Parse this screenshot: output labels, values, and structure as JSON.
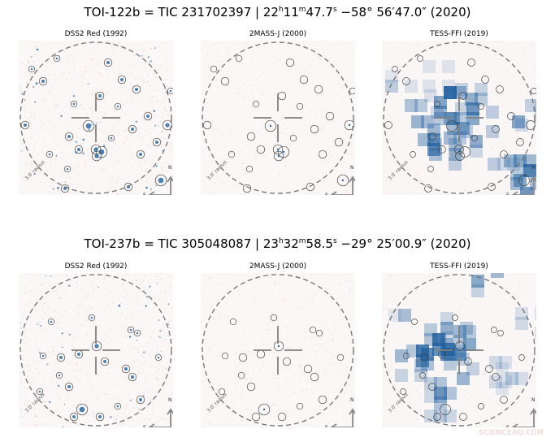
{
  "rows": [
    {
      "title_main": "TOI-122b = TIC 231702397 | 22",
      "ra_h_unit": "h",
      "ra_min": "11",
      "ra_m_unit": "m",
      "ra_sec": "47.7",
      "ra_s_unit": "s",
      "title_dec": " −58° 56′47.0″ (2020)",
      "panels": [
        {
          "label": "DSS2 Red (1992)",
          "type": "dss"
        },
        {
          "label": "2MASS-J (2000)",
          "type": "twomass"
        },
        {
          "label": "TESS-FFI (2019)",
          "type": "tess"
        }
      ]
    },
    {
      "title_main": "TOI-237b = TIC 305048087 | 23",
      "ra_h_unit": "h",
      "ra_min": "32",
      "ra_m_unit": "m",
      "ra_sec": "58.5",
      "ra_s_unit": "s",
      "title_dec": " −29° 25′00.9″ (2020)",
      "panels": [
        {
          "label": "DSS2 Red (1992)",
          "type": "dss"
        },
        {
          "label": "2MASS-J (2000)",
          "type": "twomass"
        },
        {
          "label": "TESS-FFI (2019)",
          "type": "tess"
        }
      ]
    }
  ],
  "radius_label": "3.0′ radius",
  "compass": {
    "north": "N",
    "east": "E"
  },
  "watermark": "SCIENCEAQ.COM",
  "colors": {
    "star_blue": "#2b6ca8",
    "tess_blue": "#1f5f9e",
    "ring": "#444444",
    "circle_dash": "#707070",
    "cross": "#808080",
    "noise_red": "#f2c4c0",
    "noise_blue": "#c8d8ec"
  }
}
